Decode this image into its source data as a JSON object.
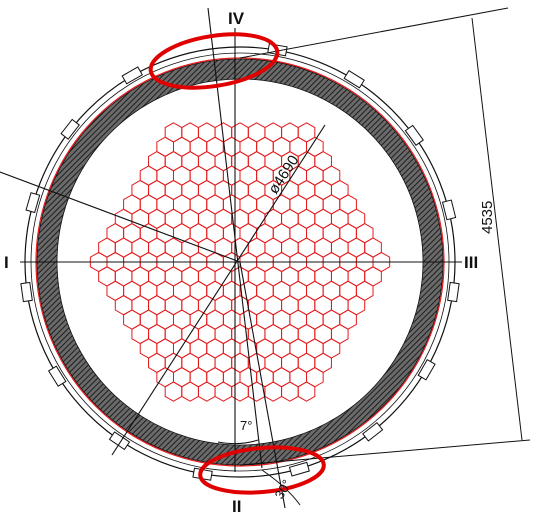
{
  "labels": {
    "axis_top": "IV",
    "axis_bottom": "II",
    "axis_left": "I",
    "axis_right": "III",
    "diameter": "ø4690",
    "height_dim": "4535",
    "angle_small": "7°",
    "angle_large": "30°"
  },
  "colors": {
    "line": "#111111",
    "hatch": "#2b2b2b",
    "ring_fill": "#555555",
    "hex": "#e41a1c",
    "highlight": "#e00000"
  },
  "hex_grid": {
    "rows_per_half": 9,
    "row_hex_counts": [
      18,
      17,
      16,
      15,
      14,
      13,
      12,
      11,
      10,
      9
    ]
  }
}
